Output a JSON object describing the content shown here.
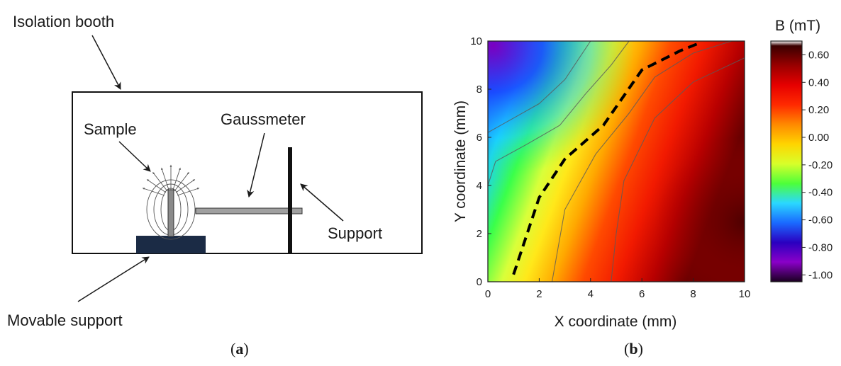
{
  "panel_a": {
    "labels": {
      "isolation_booth": "Isolation booth",
      "sample": "Sample",
      "gaussmeter": "Gaussmeter",
      "support": "Support",
      "movable_support": "Movable support"
    },
    "caption_open": "(",
    "caption_letter": "a",
    "caption_close": ")"
  },
  "panel_b": {
    "caption_open": "(",
    "caption_letter": "b",
    "caption_close": ")",
    "colors": {
      "colorbar_stops": [
        "#ffffff",
        "#3a0000",
        "#9a0000",
        "#e60000",
        "#ff2a00",
        "#ff8a00",
        "#ffd400",
        "#d8ff2a",
        "#4dff3a",
        "#2ad8ff",
        "#1a6aff",
        "#2a00c0",
        "#8a00c8",
        "#1a0020"
      ],
      "dashed_line": "#000000",
      "contour_line": "#5a5a5a"
    }
  },
  "chart_data": {
    "type": "heatmap",
    "title": "",
    "xlabel": "X coordinate (mm)",
    "ylabel": "Y coordinate (mm)",
    "xlim": [
      0,
      10
    ],
    "ylim": [
      0,
      10
    ],
    "x_ticks": [
      "0",
      "2",
      "4",
      "6",
      "8",
      "10"
    ],
    "y_ticks": [
      "0",
      "2",
      "4",
      "6",
      "8",
      "10"
    ],
    "colorbar": {
      "title": "B (mT)",
      "range": [
        -1.05,
        0.7
      ],
      "ticks": [
        "0.60",
        "0.40",
        "0.20",
        "0.00",
        "-0.20",
        "-0.40",
        "-0.60",
        "-0.80",
        "-1.00"
      ],
      "tick_values": [
        0.6,
        0.4,
        0.2,
        0.0,
        -0.2,
        -0.4,
        -0.6,
        -0.8,
        -1.0
      ]
    },
    "zero_contour_dashed": {
      "x": [
        1.0,
        2.0,
        3.0,
        4.5,
        6.0,
        7.5,
        8.2
      ],
      "y": [
        0.3,
        3.5,
        5.1,
        6.5,
        8.8,
        9.6,
        9.9
      ]
    },
    "contours": [
      {
        "x": [
          0.0,
          0.3,
          1.5,
          2.8,
          3.8,
          4.8,
          5.5
        ],
        "y": [
          4.0,
          5.0,
          5.7,
          6.5,
          7.8,
          9.0,
          10.0
        ]
      },
      {
        "x": [
          0.0,
          1.0,
          2.0,
          3.0,
          3.5,
          4.0
        ],
        "y": [
          6.2,
          6.8,
          7.4,
          8.4,
          9.2,
          10.0
        ]
      },
      {
        "x": [
          2.5,
          3.0,
          4.2,
          5.5,
          6.5,
          8.0,
          9.5
        ],
        "y": [
          0.0,
          3.0,
          5.3,
          7.0,
          8.5,
          9.5,
          10.0
        ]
      },
      {
        "x": [
          4.8,
          5.0,
          5.3,
          6.5,
          8.0,
          10.0
        ],
        "y": [
          0.0,
          2.0,
          4.2,
          6.8,
          8.3,
          9.3
        ]
      }
    ]
  }
}
